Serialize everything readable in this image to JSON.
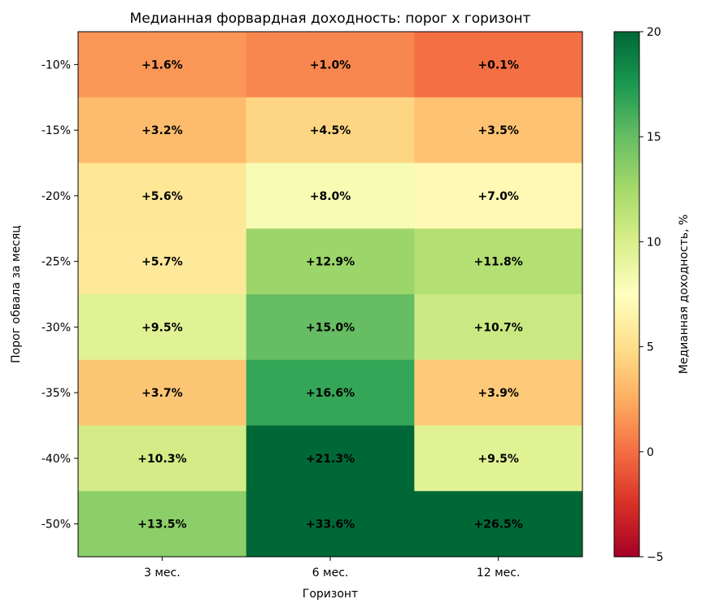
{
  "chart_data": {
    "type": "heatmap",
    "title": "Медианная форвардная доходность: порог х горизонт",
    "xlabel": "Горизонт",
    "ylabel": "Порог обвала за месяц",
    "x_categories": [
      "3 мес.",
      "6 мес.",
      "12 мес."
    ],
    "y_categories": [
      "-10%",
      "-15%",
      "-20%",
      "-25%",
      "-30%",
      "-35%",
      "-40%",
      "-50%"
    ],
    "values": [
      [
        1.6,
        1.0,
        0.1
      ],
      [
        3.2,
        4.5,
        3.5
      ],
      [
        5.6,
        8.0,
        7.0
      ],
      [
        5.7,
        12.9,
        11.8
      ],
      [
        9.5,
        15.0,
        10.7
      ],
      [
        3.7,
        16.6,
        3.9
      ],
      [
        10.3,
        21.3,
        9.5
      ],
      [
        13.5,
        33.6,
        26.5
      ]
    ],
    "cell_labels": [
      [
        "+1.6%",
        "+1.0%",
        "+0.1%"
      ],
      [
        "+3.2%",
        "+4.5%",
        "+3.5%"
      ],
      [
        "+5.6%",
        "+8.0%",
        "+7.0%"
      ],
      [
        "+5.7%",
        "+12.9%",
        "+11.8%"
      ],
      [
        "+9.5%",
        "+15.0%",
        "+10.7%"
      ],
      [
        "+3.7%",
        "+16.6%",
        "+3.9%"
      ],
      [
        "+10.3%",
        "+21.3%",
        "+9.5%"
      ],
      [
        "+13.5%",
        "+33.6%",
        "+26.5%"
      ]
    ],
    "colorbar": {
      "label": "Медианная доходность, %",
      "range": [
        -5,
        20
      ],
      "ticks": [
        -5,
        0,
        5,
        10,
        15,
        20
      ],
      "tick_labels": [
        "−5",
        "0",
        "5",
        "10",
        "15",
        "20"
      ],
      "colormap": "RdYlGn"
    }
  }
}
